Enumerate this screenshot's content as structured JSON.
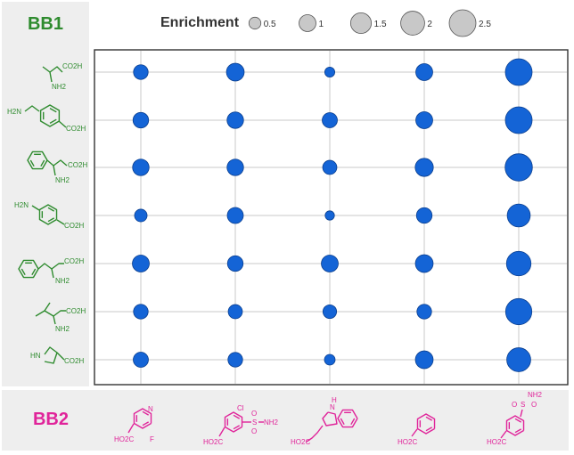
{
  "chart_data": {
    "type": "scatter",
    "title": "",
    "bb1_label": "BB1",
    "bb2_label": "BB2",
    "legend": {
      "title": "Enrichment",
      "values": [
        0.5,
        1,
        1.5,
        2,
        2.5
      ],
      "labels": [
        "0.5",
        "1",
        "1.5",
        "2",
        "2.5"
      ]
    },
    "rows": [
      "alanine",
      "4-(aminomethyl)benzoic acid",
      "phenylglycine",
      "4-aminobenzoic acid",
      "phenylalanine",
      "valine",
      "proline"
    ],
    "columns": [
      "2-fluoronicotinic acid",
      "chloro-sulfonamide benzoic acid",
      "indole-3-propionic acid",
      "benzoic acid",
      "sulfamoylbenzoic acid"
    ],
    "values": [
      [
        0.75,
        1.1,
        0.35,
        1.0,
        2.5
      ],
      [
        0.85,
        0.95,
        0.8,
        1.0,
        2.5
      ],
      [
        0.95,
        0.95,
        0.7,
        1.15,
        2.6
      ],
      [
        0.55,
        0.9,
        0.3,
        0.85,
        1.85
      ],
      [
        1.0,
        0.85,
        1.0,
        1.1,
        2.1
      ],
      [
        0.75,
        0.7,
        0.65,
        0.75,
        2.4
      ],
      [
        0.8,
        0.75,
        0.4,
        1.1,
        2.0
      ]
    ],
    "grid": true,
    "legend_position": "top",
    "colors": {
      "marker": "#1464d6",
      "marker_edge": "#0b3f8f",
      "legend_marker": "#c8c8c8",
      "bb1": "#2e8b2e",
      "bb2": "#e0249a"
    }
  },
  "molecules": {
    "bb1": [
      {
        "labels": [
          "CO2H",
          "NH2"
        ]
      },
      {
        "labels": [
          "H2N",
          "CO2H"
        ]
      },
      {
        "labels": [
          "CO2H",
          "NH2"
        ]
      },
      {
        "labels": [
          "H2N",
          "CO2H"
        ]
      },
      {
        "labels": [
          "CO2H",
          "NH2"
        ]
      },
      {
        "labels": [
          "CO2H",
          "NH2"
        ]
      },
      {
        "labels": [
          "HN",
          "CO2H"
        ]
      }
    ],
    "bb2": [
      {
        "labels": [
          "N",
          "F",
          "HO2C"
        ]
      },
      {
        "labels": [
          "Cl",
          "S",
          "O",
          "O",
          "NH2",
          "HO2C"
        ]
      },
      {
        "labels": [
          "H",
          "N",
          "HO2C"
        ]
      },
      {
        "labels": [
          "HO2C"
        ]
      },
      {
        "labels": [
          "NH2",
          "S",
          "O",
          "O",
          "HO2C"
        ]
      }
    ]
  }
}
